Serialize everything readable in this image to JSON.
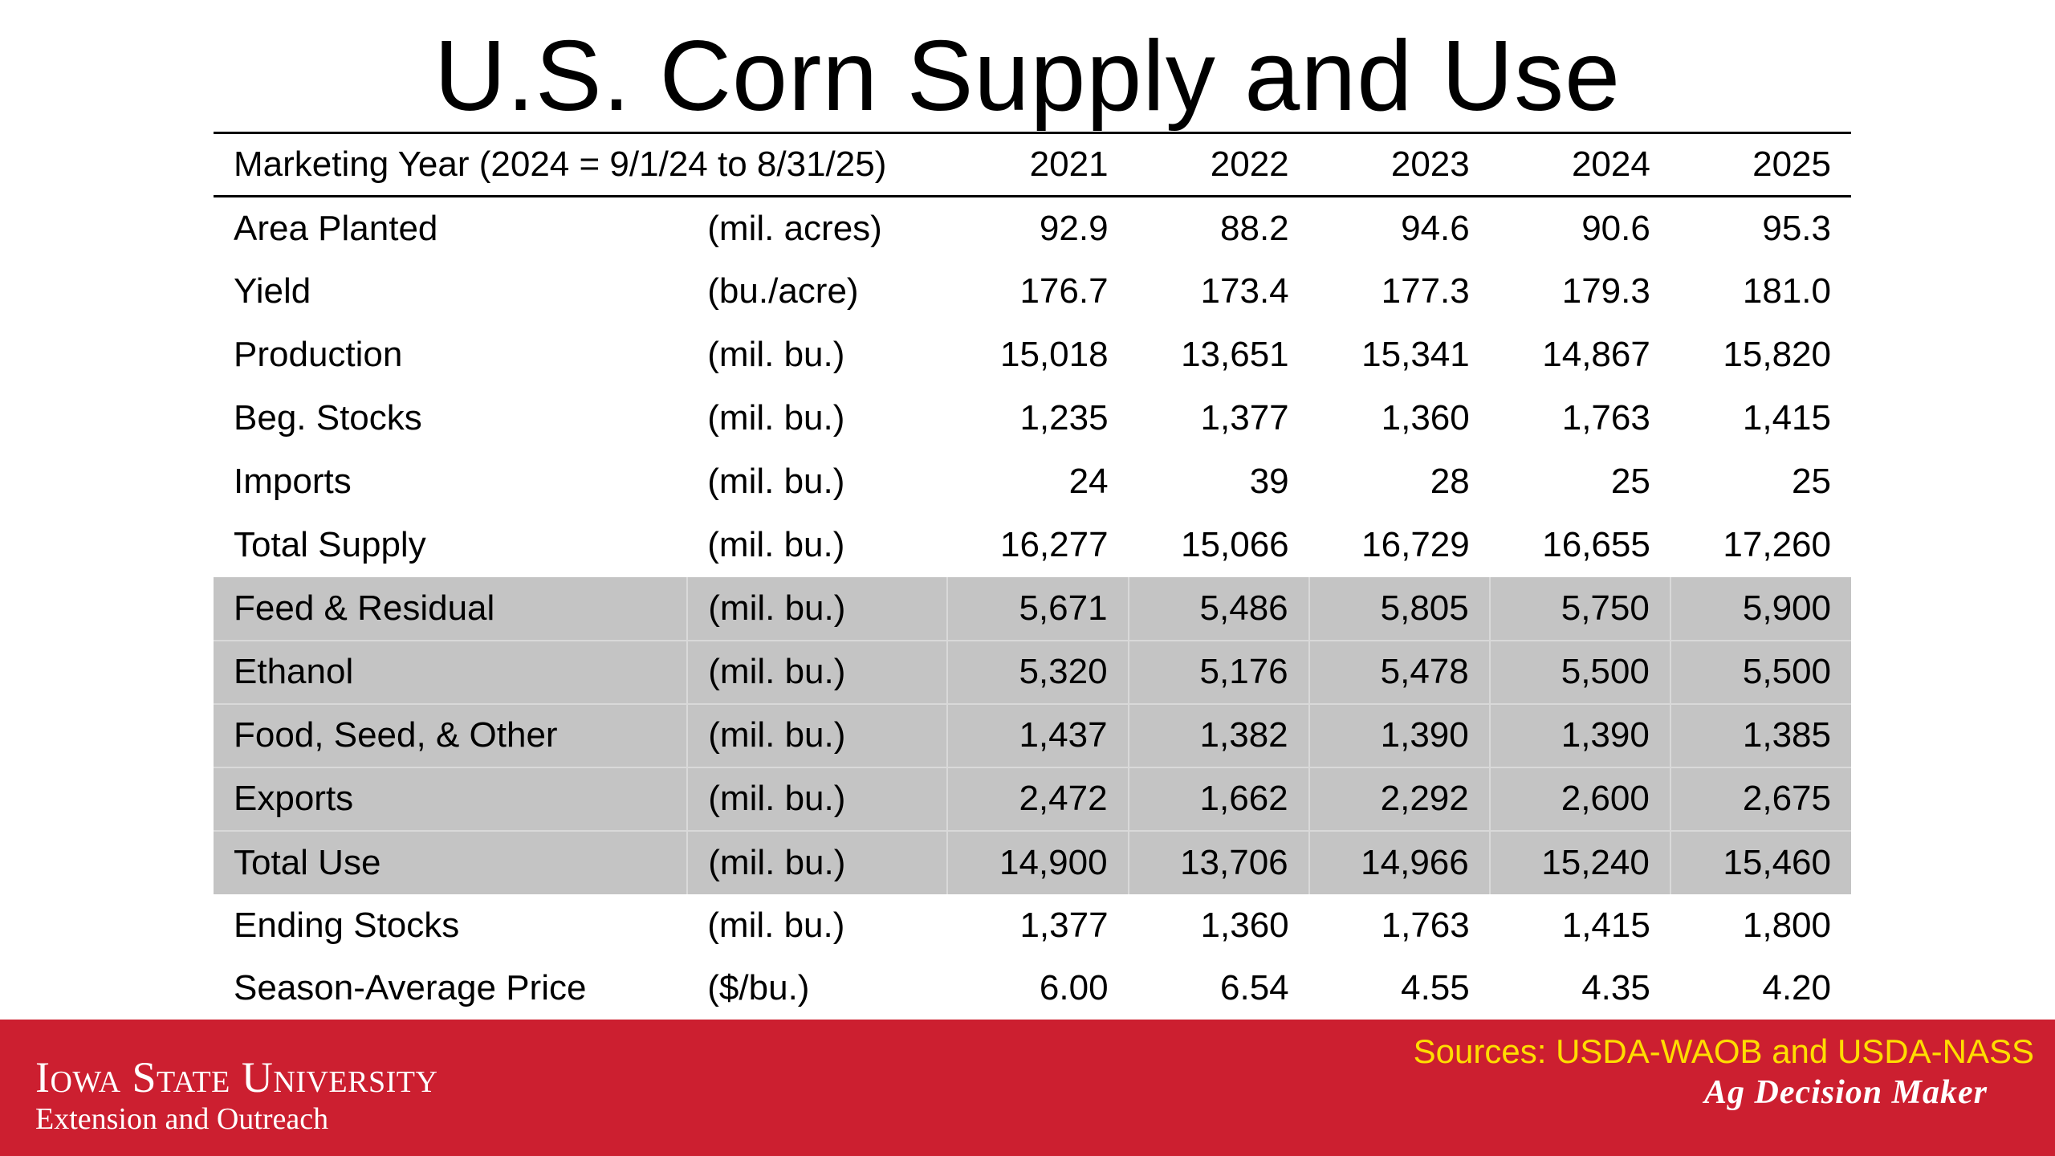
{
  "title": "U.S. Corn Supply and Use",
  "table": {
    "header_label": "Marketing Year (2024 = 9/1/24 to 8/31/25)",
    "years": [
      "2021",
      "2022",
      "2023",
      "2024",
      "2025"
    ],
    "rows": [
      {
        "label": "Area Planted",
        "unit": "(mil. acres)",
        "values": [
          "92.9",
          "88.2",
          "94.6",
          "90.6",
          "95.3"
        ]
      },
      {
        "label": "Yield",
        "unit": "(bu./acre)",
        "values": [
          "176.7",
          "173.4",
          "177.3",
          "179.3",
          "181.0"
        ]
      },
      {
        "label": "Production",
        "unit": "(mil. bu.)",
        "values": [
          "15,018",
          "13,651",
          "15,341",
          "14,867",
          "15,820"
        ]
      },
      {
        "label": "Beg. Stocks",
        "unit": "(mil. bu.)",
        "values": [
          "1,235",
          "1,377",
          "1,360",
          "1,763",
          "1,415"
        ]
      },
      {
        "label": "Imports",
        "unit": "(mil. bu.)",
        "values": [
          "24",
          "39",
          "28",
          "25",
          "25"
        ]
      },
      {
        "label": "Total Supply",
        "unit": "(mil. bu.)",
        "values": [
          "16,277",
          "15,066",
          "16,729",
          "16,655",
          "17,260"
        ]
      },
      {
        "label": "Feed & Residual",
        "unit": "(mil. bu.)",
        "values": [
          "5,671",
          "5,486",
          "5,805",
          "5,750",
          "5,900"
        ]
      },
      {
        "label": "Ethanol",
        "unit": "(mil. bu.)",
        "values": [
          "5,320",
          "5,176",
          "5,478",
          "5,500",
          "5,500"
        ]
      },
      {
        "label": "Food, Seed, & Other",
        "unit": "(mil. bu.)",
        "values": [
          "1,437",
          "1,382",
          "1,390",
          "1,390",
          "1,385"
        ]
      },
      {
        "label": "Exports",
        "unit": "(mil. bu.)",
        "values": [
          "2,472",
          "1,662",
          "2,292",
          "2,600",
          "2,675"
        ]
      },
      {
        "label": "Total Use",
        "unit": "(mil. bu.)",
        "values": [
          "14,900",
          "13,706",
          "14,966",
          "15,240",
          "15,460"
        ]
      },
      {
        "label": "Ending Stocks",
        "unit": "(mil. bu.)",
        "values": [
          "1,377",
          "1,360",
          "1,763",
          "1,415",
          "1,800"
        ]
      },
      {
        "label": "Season-Average Price",
        "unit": "($/bu.)",
        "values": [
          "6.00",
          "6.54",
          "4.55",
          "4.35",
          "4.20"
        ]
      }
    ]
  },
  "footer": {
    "university": "Iowa State University",
    "unit": "Extension and Outreach",
    "sources": "Sources: USDA-WAOB and USDA-NASS",
    "brand": "Ag Decision Maker"
  },
  "colors": {
    "footer_bg": "#cc1f30",
    "use_rows_bg": "#c4c4c4",
    "sources_text": "#ffdd00"
  }
}
